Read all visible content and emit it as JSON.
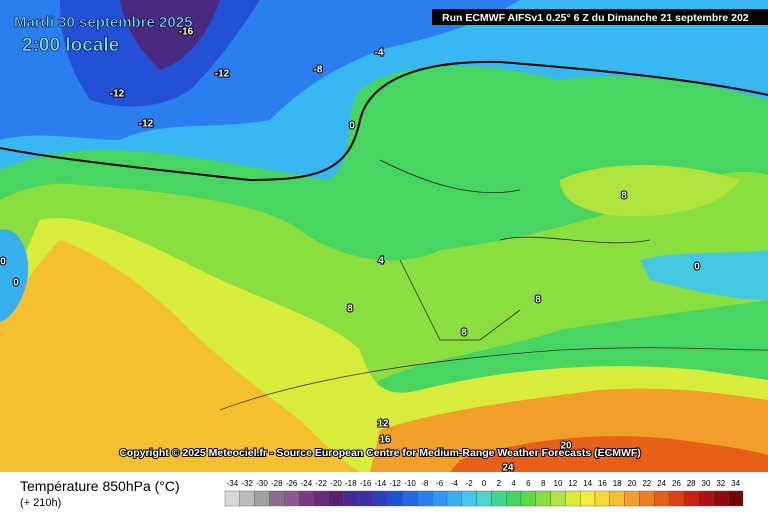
{
  "header": {
    "date": "Mardi 30 septembre 2025",
    "time": "2:00 locale",
    "run": "Run ECMWF AIFSv1 0.25° 6 Z du Dimanche 21 septembre 202"
  },
  "copyright": "Copyright © 2025 Meteociel.fr - Source European Centre for Medium-Range Weather Forecasts (ECMWF)",
  "contours": [
    -16,
    -12,
    -8,
    -4,
    -12,
    -12,
    0,
    0,
    0,
    4,
    8,
    8,
    0,
    8,
    8,
    12,
    16,
    20,
    24
  ],
  "legend": {
    "title": "Température 850hPa (°C)",
    "subtitle": "(+ 210h)",
    "ticks": [
      -34,
      -32,
      -30,
      -28,
      -26,
      -24,
      -22,
      -20,
      -18,
      -16,
      -14,
      -12,
      -10,
      -8,
      -6,
      -4,
      -2,
      0,
      2,
      4,
      6,
      8,
      10,
      12,
      14,
      16,
      18,
      20,
      22,
      24,
      26,
      28,
      30,
      32,
      34
    ],
    "colors": [
      "#d8d8d8",
      "#bcbcbc",
      "#a0a0a0",
      "#8a6e8a",
      "#8c5a8c",
      "#7a3c80",
      "#6a2a78",
      "#5a2070",
      "#4a2a90",
      "#3c30a8",
      "#2c3cc0",
      "#2050d8",
      "#2468e8",
      "#2a80f0",
      "#3098f4",
      "#38b0f0",
      "#40c8e8",
      "#48d8c8",
      "#40d890",
      "#44d464",
      "#5cd848",
      "#88dc40",
      "#b0e43c",
      "#d8ec3c",
      "#f4ec40",
      "#f8d838",
      "#f4c030",
      "#f0a028",
      "#ec8020",
      "#e86018",
      "#e04014",
      "#cc2010",
      "#b01010",
      "#900c0c",
      "#6c0808"
    ]
  }
}
